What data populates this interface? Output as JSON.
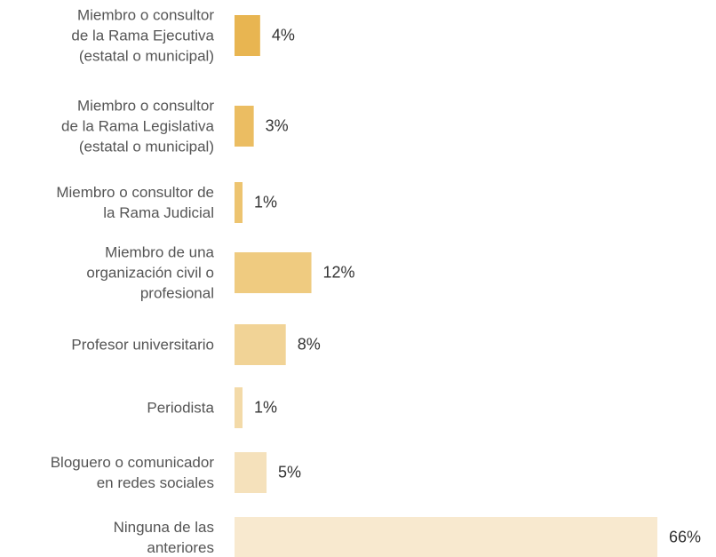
{
  "chart_data": {
    "type": "bar",
    "orientation": "horizontal",
    "categories": [
      "Miembro o consultor\nde la Rama Ejecutiva\n(estatal o municipal)",
      "Miembro o consultor\nde la Rama Legislativa\n(estatal o municipal)",
      "Miembro o consultor de\nla Rama Judicial",
      "Miembro de una\norganización civil o\nprofesional",
      "Profesor universitario",
      "Periodista",
      "Bloguero o comunicador\nen redes sociales",
      "Ninguna de las\nanteriores"
    ],
    "values": [
      4,
      3,
      1,
      12,
      8,
      1,
      5,
      66
    ],
    "value_labels": [
      "4%",
      "3%",
      "1%",
      "12%",
      "8%",
      "1%",
      "5%",
      "66%"
    ],
    "colors": [
      "#e8b551",
      "#ebbd62",
      "#edc470",
      "#efcb80",
      "#f1d396",
      "#f3daa8",
      "#f5e1bb",
      "#f8e9cf"
    ]
  }
}
